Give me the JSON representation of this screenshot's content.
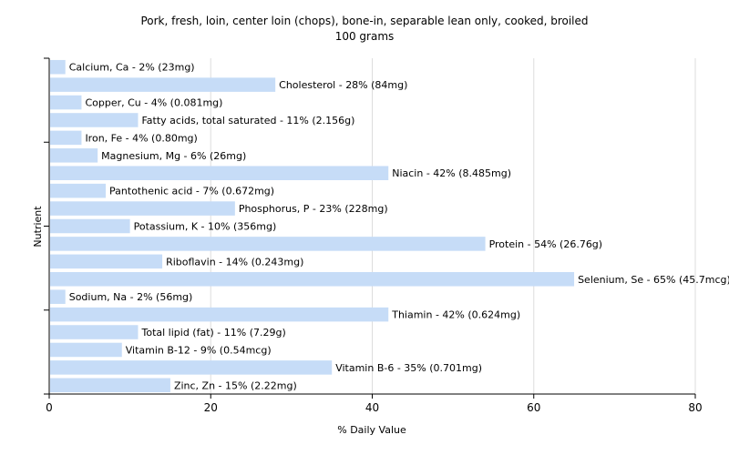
{
  "chart_data": {
    "type": "bar",
    "orientation": "horizontal",
    "title": "Pork, fresh, loin, center loin (chops), bone-in, separable lean only, cooked, broiled",
    "subtitle": "100 grams",
    "xlabel": "% Daily Value",
    "ylabel": "Nutrient",
    "xlim": [
      0,
      80
    ],
    "xticks": [
      0,
      20,
      40,
      60,
      80
    ],
    "grid": true,
    "bar_color": "#c6dcf7",
    "categories": [
      "Calcium, Ca",
      "Cholesterol",
      "Copper, Cu",
      "Fatty acids, total saturated",
      "Iron, Fe",
      "Magnesium, Mg",
      "Niacin",
      "Pantothenic acid",
      "Phosphorus, P",
      "Potassium, K",
      "Protein",
      "Riboflavin",
      "Selenium, Se",
      "Sodium, Na",
      "Thiamin",
      "Total lipid (fat)",
      "Vitamin B-12",
      "Vitamin B-6",
      "Zinc, Zn"
    ],
    "values": [
      2,
      28,
      4,
      11,
      4,
      6,
      42,
      7,
      23,
      10,
      54,
      14,
      65,
      2,
      42,
      11,
      9,
      35,
      15
    ],
    "labels": [
      "Calcium, Ca - 2% (23mg)",
      "Cholesterol - 28% (84mg)",
      "Copper, Cu - 4% (0.081mg)",
      "Fatty acids, total saturated - 11% (2.156g)",
      "Iron, Fe - 4% (0.80mg)",
      "Magnesium, Mg - 6% (26mg)",
      "Niacin - 42% (8.485mg)",
      "Pantothenic acid - 7% (0.672mg)",
      "Phosphorus, P - 23% (228mg)",
      "Potassium, K - 10% (356mg)",
      "Protein - 54% (26.76g)",
      "Riboflavin - 14% (0.243mg)",
      "Selenium, Se - 65% (45.7mcg)",
      "Sodium, Na - 2% (56mg)",
      "Thiamin - 42% (0.624mg)",
      "Total lipid (fat) - 11% (7.29g)",
      "Vitamin B-12 - 9% (0.54mcg)",
      "Vitamin B-6 - 35% (0.701mg)",
      "Zinc, Zn - 15% (2.22mg)"
    ]
  }
}
